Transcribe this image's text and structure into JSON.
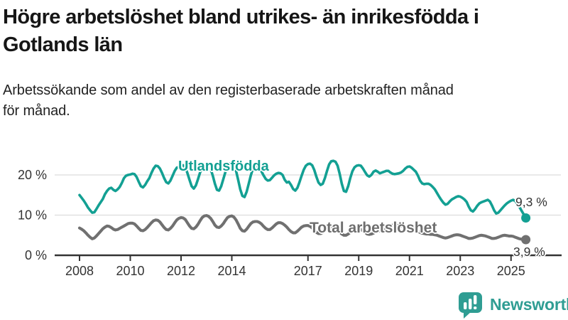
{
  "header": {
    "title_lines": [
      "Högre arbetslöshet bland utrikes- än inrikesfödda i",
      "Gotlands län"
    ],
    "subtitle_lines": [
      "Arbetssökande som andel av den registerbaserade arbetskraften månad",
      "för månad."
    ]
  },
  "chart_data": {
    "type": "line",
    "title": "Högre arbetslöshet bland utrikes- än inrikesfödda i Gotlands län",
    "subtitle": "Arbetssökande som andel av den registerbaserade arbetskraften månad för månad.",
    "xlabel": "",
    "ylabel": "",
    "x_unit": "month",
    "x_start": "2008-01",
    "x_end": "2025-08",
    "x_tick_years": [
      2008,
      2010,
      2012,
      2014,
      2017,
      2019,
      2021,
      2023,
      2025
    ],
    "x_tick_labels": [
      "2008",
      "2010",
      "2012",
      "2014",
      "2017",
      "2019",
      "2021",
      "2023",
      "2025"
    ],
    "y_ticks": [
      {
        "value": 0,
        "label": "0 %"
      },
      {
        "value": 10,
        "label": "10 %"
      },
      {
        "value": 20,
        "label": "20 %"
      }
    ],
    "ylim": [
      0,
      24
    ],
    "grid": "horizontal",
    "legend": "inline-labels",
    "axis_color": "#333333",
    "grid_color": "#dcdcdc",
    "series": [
      {
        "name": "Utlandsfödda",
        "color": "#13A093",
        "end_value": 9.3,
        "end_value_label": "9,3 %",
        "values": [
          15.0,
          14.3,
          13.6,
          12.8,
          11.9,
          11.2,
          10.6,
          10.7,
          11.5,
          12.4,
          13.2,
          14.0,
          15.2,
          16.0,
          16.6,
          16.8,
          16.3,
          16.0,
          16.4,
          17.0,
          18.0,
          19.2,
          19.8,
          20.0,
          20.1,
          20.3,
          20.2,
          19.5,
          18.3,
          17.2,
          16.9,
          17.5,
          18.4,
          19.2,
          20.5,
          21.6,
          22.3,
          22.2,
          21.6,
          20.5,
          19.2,
          18.2,
          17.9,
          18.6,
          19.8,
          21.0,
          21.8,
          22.0,
          22.3,
          22.4,
          21.8,
          20.5,
          18.8,
          17.2,
          16.6,
          17.4,
          18.9,
          20.6,
          21.8,
          22.5,
          22.6,
          22.4,
          21.5,
          19.8,
          17.8,
          16.3,
          16.1,
          17.2,
          19.0,
          20.8,
          22.2,
          22.8,
          22.7,
          22.3,
          21.0,
          18.8,
          16.4,
          14.8,
          14.5,
          15.8,
          17.8,
          19.9,
          21.6,
          22.3,
          22.1,
          21.7,
          20.9,
          19.9,
          19.0,
          18.6,
          18.7,
          19.3,
          19.9,
          20.3,
          20.5,
          20.4,
          20.0,
          18.8,
          18.1,
          18.3,
          17.5,
          16.5,
          16.1,
          16.8,
          18.2,
          19.8,
          21.3,
          22.3,
          22.7,
          22.8,
          22.4,
          21.2,
          19.5,
          18.1,
          17.5,
          17.8,
          19.2,
          21.0,
          22.6,
          23.4,
          23.5,
          23.3,
          22.3,
          20.3,
          17.8,
          16.0,
          15.8,
          17.2,
          19.2,
          20.9,
          21.9,
          22.3,
          22.4,
          22.3,
          21.6,
          20.7,
          19.9,
          19.6,
          20.0,
          20.8,
          21.1,
          20.8,
          20.4,
          20.6,
          20.8,
          21.0,
          21.0,
          20.6,
          20.3,
          20.2,
          20.3,
          20.4,
          20.6,
          21.0,
          21.6,
          22.0,
          22.1,
          21.8,
          21.3,
          20.8,
          19.8,
          18.6,
          17.9,
          17.7,
          17.8,
          17.8,
          17.5,
          17.0,
          16.4,
          15.5,
          14.6,
          13.8,
          13.1,
          12.6,
          12.8,
          13.4,
          13.9,
          14.2,
          14.5,
          14.7,
          14.6,
          14.3,
          13.9,
          13.3,
          12.1,
          11.2,
          10.9,
          11.5,
          12.3,
          12.9,
          13.2,
          13.4,
          13.6,
          13.8,
          13.4,
          12.4,
          11.2,
          10.4,
          10.6,
          11.2,
          11.8,
          12.4,
          12.9,
          13.3,
          13.6,
          13.8,
          13.5,
          12.8,
          12.0,
          11.1,
          10.2,
          9.3
        ]
      },
      {
        "name": "Total arbetslöshet",
        "color": "#707070",
        "end_value": 3.9,
        "end_value_label": "3,9 %",
        "values": [
          6.8,
          6.5,
          6.1,
          5.6,
          5.0,
          4.5,
          4.1,
          4.3,
          4.8,
          5.4,
          6.0,
          6.6,
          7.0,
          7.3,
          7.2,
          6.9,
          6.5,
          6.3,
          6.4,
          6.7,
          7.0,
          7.3,
          7.6,
          7.9,
          8.0,
          8.0,
          7.8,
          7.3,
          6.7,
          6.2,
          6.1,
          6.4,
          6.9,
          7.5,
          8.1,
          8.6,
          8.8,
          8.7,
          8.3,
          7.6,
          6.9,
          6.4,
          6.3,
          6.7,
          7.3,
          8.1,
          8.8,
          9.2,
          9.4,
          9.3,
          8.9,
          8.1,
          7.3,
          6.7,
          6.6,
          7.0,
          7.7,
          8.6,
          9.4,
          9.8,
          9.9,
          9.7,
          9.2,
          8.4,
          7.5,
          7.0,
          6.9,
          7.3,
          7.9,
          8.7,
          9.4,
          9.7,
          9.8,
          9.5,
          8.8,
          7.8,
          6.7,
          6.1,
          6.0,
          6.5,
          7.2,
          7.9,
          8.3,
          8.4,
          8.4,
          8.2,
          7.8,
          7.2,
          6.7,
          6.4,
          6.4,
          6.8,
          7.3,
          7.8,
          8.1,
          8.1,
          7.9,
          7.5,
          7.0,
          6.4,
          5.9,
          5.6,
          5.6,
          6.0,
          6.5,
          7.0,
          7.3,
          7.4,
          7.4,
          7.2,
          6.8,
          6.2,
          5.7,
          5.4,
          5.4,
          5.7,
          6.1,
          6.5,
          6.8,
          7.0,
          7.0,
          6.8,
          6.4,
          5.8,
          5.3,
          5.0,
          5.0,
          5.3,
          5.7,
          6.1,
          6.4,
          6.6,
          6.6,
          6.4,
          6.1,
          5.7,
          5.3,
          5.2,
          5.3,
          5.5,
          5.8,
          6.0,
          6.1,
          6.2,
          6.3,
          6.4,
          6.8,
          7.3,
          7.5,
          7.6,
          7.5,
          7.4,
          7.3,
          7.2,
          7.1,
          7.0,
          7.0,
          6.9,
          6.6,
          6.3,
          6.0,
          5.7,
          5.5,
          5.4,
          5.3,
          5.3,
          5.2,
          5.2,
          5.1,
          5.0,
          4.8,
          4.6,
          4.4,
          4.3,
          4.4,
          4.6,
          4.8,
          5.0,
          5.1,
          5.1,
          5.0,
          4.8,
          4.6,
          4.4,
          4.2,
          4.2,
          4.3,
          4.5,
          4.7,
          4.9,
          5.0,
          4.9,
          4.8,
          4.6,
          4.4,
          4.2,
          4.2,
          4.3,
          4.5,
          4.7,
          4.9,
          5.0,
          4.9,
          4.8,
          4.8,
          4.7,
          4.5,
          4.3,
          4.1,
          4.0,
          3.9,
          3.9
        ]
      }
    ]
  },
  "footer": {
    "brand": "Newsworthy",
    "brand_color": "#2F9D93",
    "icon": "bar-chart-speech-bubble-icon"
  }
}
